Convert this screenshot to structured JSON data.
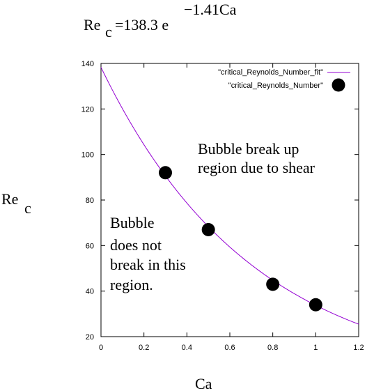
{
  "chart_data": {
    "type": "scatter",
    "title": {
      "base": "Re",
      "base_sub": "c",
      "equals": "=138.3 e",
      "exponent": "−1.41Ca"
    },
    "xlabel": "Ca",
    "ylabel": {
      "base": "Re",
      "sub": "c"
    },
    "xlim": [
      0,
      1.2
    ],
    "ylim": [
      20,
      140
    ],
    "xticks": [
      "0",
      "0.2",
      "0.4",
      "0.6",
      "0.8",
      "1",
      "1.2"
    ],
    "yticks": [
      "20",
      "40",
      "60",
      "80",
      "100",
      "120",
      "140"
    ],
    "grid": false,
    "legend_position": "top-right",
    "series": [
      {
        "name": "\"critical_Reynolds_Number_fit\"",
        "kind": "line",
        "color": "#9400d3",
        "fit": {
          "a": 138.3,
          "b": -1.41
        },
        "x": [
          0,
          1.2
        ]
      },
      {
        "name": "\"critical_Reynolds_Number\"",
        "kind": "points",
        "color": "#000000",
        "x": [
          0.3,
          0.5,
          0.8,
          1.0
        ],
        "y": [
          92,
          67,
          43,
          34
        ]
      }
    ],
    "annotations": [
      {
        "id": "upper",
        "lines": [
          "Bubble break up",
          "region due to shear"
        ]
      },
      {
        "id": "lower",
        "lines": [
          "Bubble",
          "does not",
          "break in this",
          "region."
        ]
      }
    ]
  }
}
